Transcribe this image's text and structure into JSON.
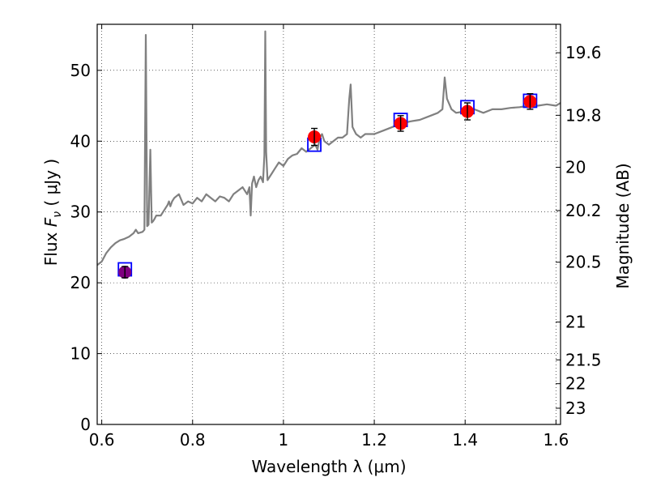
{
  "chart_data": {
    "type": "line",
    "title": "",
    "xlabel": "Wavelength  λ (μm)",
    "ylabel_text": "Flux  ",
    "ylabel_symbol": "F",
    "ylabel_subscript": "ν",
    "ylabel_units": "  ( μJy )",
    "y2label": "Magnitude (AB)",
    "xlim": [
      0.59,
      1.61
    ],
    "ylim": [
      0,
      56.5
    ],
    "grid": true,
    "x_ticks": [
      {
        "value": 0.6,
        "label": "0.6"
      },
      {
        "value": 0.8,
        "label": "0.8"
      },
      {
        "value": 1.0,
        "label": "1"
      },
      {
        "value": 1.2,
        "label": "1.2"
      },
      {
        "value": 1.4,
        "label": "1.4"
      },
      {
        "value": 1.6,
        "label": "1.6"
      }
    ],
    "y_ticks": [
      {
        "value": 0,
        "label": "0"
      },
      {
        "value": 10,
        "label": "10"
      },
      {
        "value": 20,
        "label": "20"
      },
      {
        "value": 30,
        "label": "30"
      },
      {
        "value": 40,
        "label": "40"
      },
      {
        "value": 50,
        "label": "50"
      }
    ],
    "y2_ticks": [
      {
        "value": 19.6,
        "label": "19.6"
      },
      {
        "value": 19.8,
        "label": "19.8"
      },
      {
        "value": 20,
        "label": "20"
      },
      {
        "value": 20.2,
        "label": "20.2"
      },
      {
        "value": 20.5,
        "label": "20.5"
      },
      {
        "value": 21,
        "label": "21"
      },
      {
        "value": 21.5,
        "label": "21.5"
      },
      {
        "value": 22,
        "label": "22"
      },
      {
        "value": 23,
        "label": "23"
      }
    ],
    "spectrum": {
      "color": "#808080",
      "x": [
        0.59,
        0.6,
        0.61,
        0.62,
        0.63,
        0.64,
        0.65,
        0.66,
        0.67,
        0.675,
        0.68,
        0.69,
        0.694,
        0.697,
        0.7,
        0.703,
        0.707,
        0.71,
        0.713,
        0.716,
        0.72,
        0.73,
        0.74,
        0.745,
        0.748,
        0.751,
        0.755,
        0.76,
        0.77,
        0.78,
        0.79,
        0.8,
        0.81,
        0.82,
        0.83,
        0.84,
        0.85,
        0.86,
        0.87,
        0.88,
        0.89,
        0.9,
        0.91,
        0.92,
        0.925,
        0.928,
        0.931,
        0.935,
        0.94,
        0.945,
        0.95,
        0.955,
        0.958,
        0.96,
        0.962,
        0.965,
        0.97,
        0.975,
        0.98,
        0.99,
        1.0,
        1.01,
        1.02,
        1.03,
        1.04,
        1.05,
        1.06,
        1.07,
        1.075,
        1.08,
        1.085,
        1.09,
        1.1,
        1.11,
        1.12,
        1.13,
        1.14,
        1.145,
        1.148,
        1.152,
        1.156,
        1.16,
        1.17,
        1.18,
        1.2,
        1.22,
        1.24,
        1.26,
        1.28,
        1.3,
        1.32,
        1.34,
        1.35,
        1.355,
        1.36,
        1.37,
        1.38,
        1.4,
        1.42,
        1.44,
        1.46,
        1.48,
        1.5,
        1.52,
        1.54,
        1.56,
        1.58,
        1.6,
        1.61
      ],
      "y": [
        22.5,
        23.0,
        24.2,
        25.0,
        25.6,
        26.0,
        26.2,
        26.5,
        27.0,
        27.5,
        27.0,
        27.2,
        27.5,
        55.0,
        28.0,
        28.2,
        38.8,
        28.5,
        28.7,
        29.0,
        29.5,
        29.5,
        30.5,
        31.0,
        31.5,
        30.8,
        31.5,
        32.0,
        32.5,
        31.0,
        31.5,
        31.2,
        32.0,
        31.5,
        32.5,
        32.0,
        31.5,
        32.2,
        32.0,
        31.5,
        32.5,
        33.0,
        33.5,
        32.5,
        33.5,
        29.5,
        34.0,
        35.0,
        33.5,
        34.5,
        35.0,
        34.2,
        38.0,
        55.5,
        38.5,
        34.5,
        35.0,
        35.5,
        36.0,
        37.0,
        36.5,
        37.5,
        38.0,
        38.2,
        39.0,
        38.5,
        39.0,
        39.5,
        38.8,
        40.5,
        41.0,
        40.0,
        39.5,
        40.0,
        40.5,
        40.5,
        41.0,
        46.0,
        48.0,
        42.0,
        41.5,
        41.0,
        40.5,
        41.0,
        41.0,
        41.5,
        42.0,
        42.5,
        42.8,
        43.0,
        43.5,
        44.0,
        44.5,
        49.0,
        46.0,
        44.5,
        44.0,
        44.2,
        44.5,
        44.0,
        44.5,
        44.5,
        44.7,
        44.8,
        45.0,
        45.0,
        45.2,
        45.0,
        45.4
      ]
    },
    "model_points": {
      "marker": "open-square",
      "color": "#0000ff",
      "x": [
        0.651,
        1.068,
        1.258,
        1.405,
        1.543
      ],
      "y": [
        21.9,
        39.5,
        43.0,
        44.8,
        45.7
      ]
    },
    "observed_points": {
      "marker": "filled-circle",
      "color": "#ff0000",
      "x": [
        0.651,
        1.068,
        1.258,
        1.405,
        1.543
      ],
      "y": [
        21.5,
        40.6,
        42.5,
        44.2,
        45.6
      ],
      "err": [
        0.8,
        1.2,
        1.1,
        1.2,
        1.1
      ],
      "first_point_color": "#800080"
    }
  }
}
